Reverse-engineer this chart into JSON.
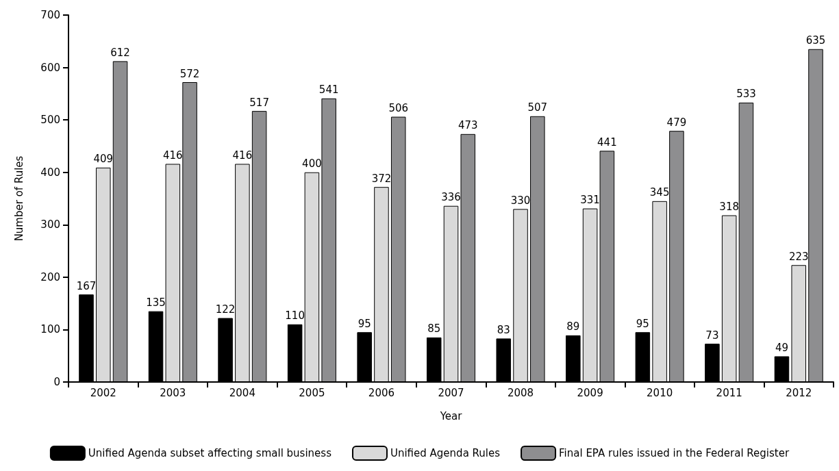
{
  "chart_data": {
    "type": "bar",
    "xlabel": "Year",
    "ylabel": "Number of Rules",
    "categories": [
      "2002",
      "2003",
      "2004",
      "2005",
      "2006",
      "2007",
      "2008",
      "2009",
      "2010",
      "2011",
      "2012"
    ],
    "series": [
      {
        "name": "Unified Agenda subset affecting small business",
        "color": "#000000",
        "values": [
          167,
          135,
          122,
          110,
          95,
          85,
          83,
          89,
          95,
          73,
          49
        ]
      },
      {
        "name": "Unified Agenda Rules",
        "color": "#d9d9d9",
        "values": [
          409,
          416,
          416,
          400,
          372,
          336,
          330,
          331,
          345,
          318,
          223
        ]
      },
      {
        "name": "Final EPA rules issued in the Federal Register",
        "color": "#8e8e90",
        "values": [
          612,
          572,
          517,
          541,
          506,
          473,
          507,
          441,
          479,
          533,
          635
        ]
      }
    ],
    "ylim": [
      0,
      700
    ],
    "yticks": [
      0,
      100,
      200,
      300,
      400,
      500,
      600,
      700
    ],
    "grid": false,
    "legend": "bottom",
    "data_labels": true
  }
}
